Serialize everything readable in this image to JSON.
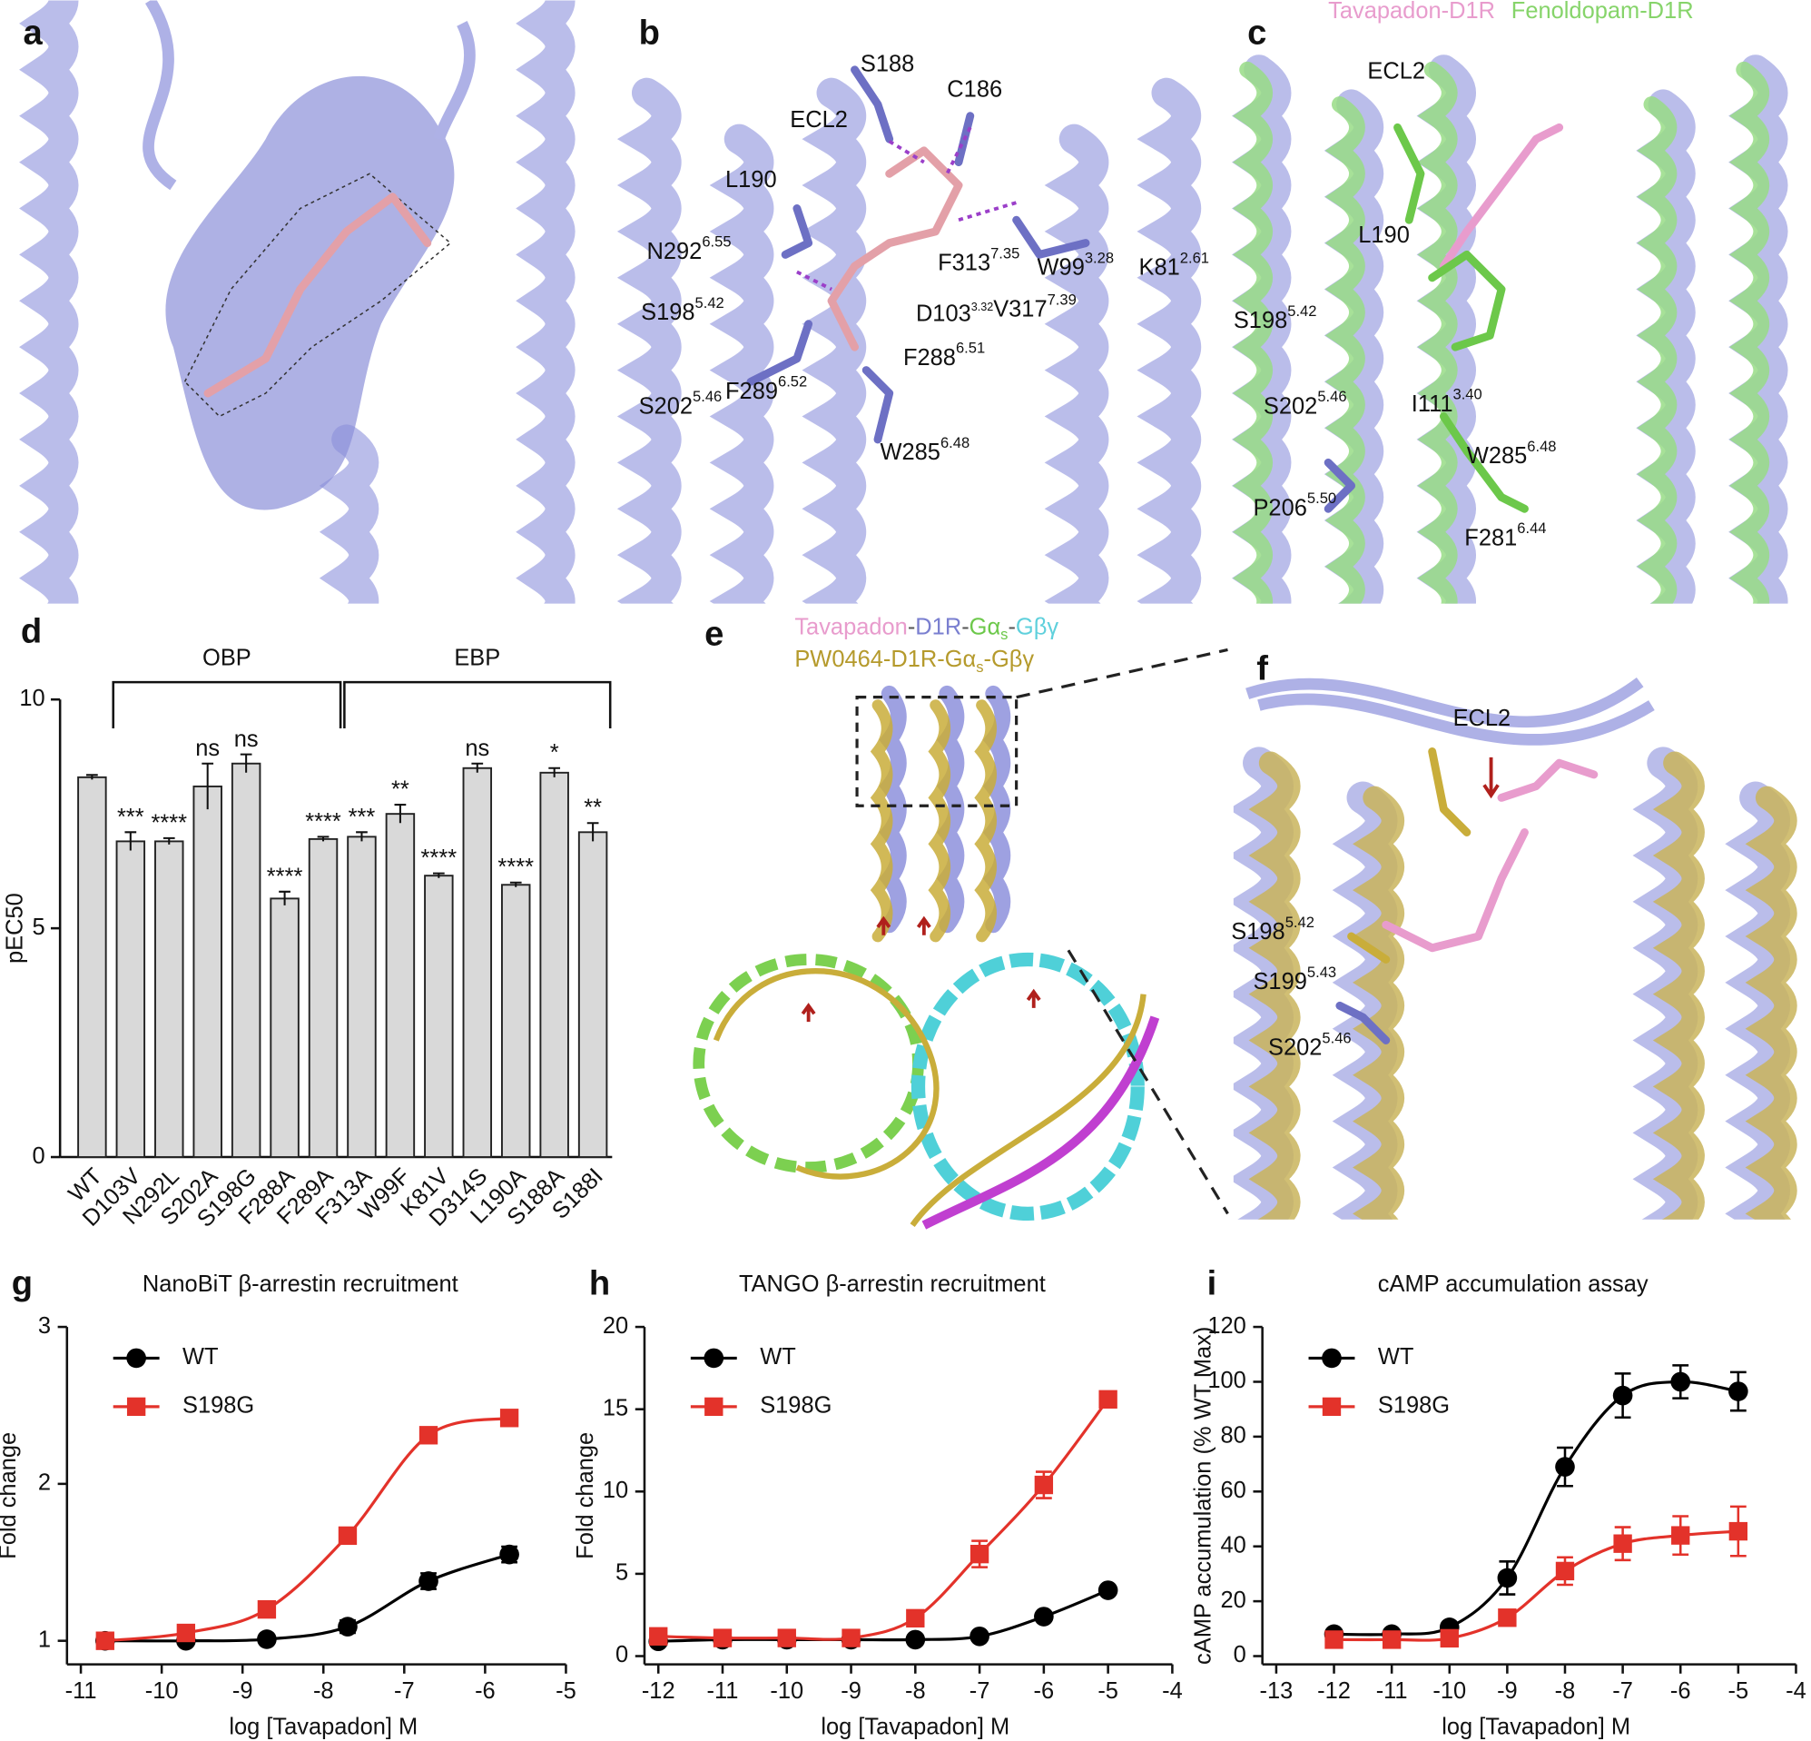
{
  "structure_panels": [
    {
      "panel_label": "a"
    },
    {
      "panel_label": "b",
      "labels": [
        {
          "text": "S188"
        },
        {
          "text": "C186"
        },
        {
          "text": "ECL2"
        },
        {
          "text": "L190"
        },
        {
          "text": "N292",
          "sup": "6.55"
        },
        {
          "text": "F313",
          "sup": "7.35"
        },
        {
          "text": "W99",
          "sup": "3.28"
        },
        {
          "text": "K81",
          "sup": "2.61"
        },
        {
          "text": "S198",
          "sup": "5.42"
        },
        {
          "text": "D103",
          "sup": "3.32"
        },
        {
          "text": "V317",
          "sup": "7.39"
        },
        {
          "text": "F288",
          "sup": "6.51"
        },
        {
          "text": "F289",
          "sup": "6.52"
        },
        {
          "text": "S202",
          "sup": "5.46"
        },
        {
          "text": "W285",
          "sup": "6.48"
        }
      ]
    },
    {
      "panel_label": "c",
      "legend": [
        {
          "text": "Tavapadon-D1R",
          "color": "#e89ccd"
        },
        {
          "text": "Fenoldopam-D1R",
          "color": "#86d46a"
        }
      ],
      "labels": [
        {
          "text": "ECL2"
        },
        {
          "text": "L190"
        },
        {
          "text": "S198",
          "sup": "5.42"
        },
        {
          "text": "S202",
          "sup": "5.46"
        },
        {
          "text": "I111",
          "sup": "3.40"
        },
        {
          "text": "W285",
          "sup": "6.48"
        },
        {
          "text": "P206",
          "sup": "5.50"
        },
        {
          "text": "F281",
          "sup": "6.44"
        }
      ]
    },
    {
      "panel_label": "e",
      "legend": [
        [
          {
            "text": "Tavapadon",
            "color": "#e89ccd"
          },
          {
            "text": "-",
            "color": "#555555"
          },
          {
            "text": "D1R",
            "color": "#7a7fd0"
          },
          {
            "text": "-",
            "color": "#555555"
          },
          {
            "text": "Gα",
            "color": "#6cc84a"
          },
          {
            "text": "s",
            "color": "#6cc84a",
            "subscript": true
          },
          {
            "text": "-",
            "color": "#555555"
          },
          {
            "text": "Gβγ",
            "color": "#5fd0dc"
          }
        ],
        [
          {
            "text": "PW0464-D1R-Gα",
            "color": "#b59a2c"
          },
          {
            "text": "s",
            "color": "#b59a2c",
            "subscript": true
          },
          {
            "text": "-Gβγ",
            "color": "#b59a2c"
          }
        ]
      ]
    },
    {
      "panel_label": "f",
      "labels": [
        {
          "text": "ECL2"
        },
        {
          "text": "S198",
          "sup": "5.42"
        },
        {
          "text": "S199",
          "sup": "5.43"
        },
        {
          "text": "S202",
          "sup": "5.46"
        }
      ]
    }
  ],
  "chart_data": [
    {
      "type": "bar",
      "panel_label": "d",
      "ylabel": "pEC50",
      "categories": [
        "WT",
        "D103V",
        "N292L",
        "S202A",
        "S198G",
        "F288A",
        "F289A",
        "F313A",
        "W99F",
        "K81V",
        "D314S",
        "L190A",
        "S188A",
        "S188I"
      ],
      "values": [
        8.3,
        6.9,
        6.9,
        8.1,
        8.6,
        5.65,
        6.95,
        7.0,
        7.5,
        6.15,
        8.5,
        5.95,
        8.4,
        7.1
      ],
      "errors": [
        0.05,
        0.2,
        0.07,
        0.5,
        0.2,
        0.15,
        0.05,
        0.1,
        0.2,
        0.05,
        0.1,
        0.05,
        0.1,
        0.2
      ],
      "annotations": [
        null,
        "***",
        "****",
        "ns",
        "ns",
        "****",
        "****",
        "***",
        "**",
        "****",
        "ns",
        "****",
        "*",
        "**"
      ],
      "groups": [
        {
          "label": "OBP",
          "members": [
            "D103V",
            "N292L",
            "S202A",
            "S198G",
            "F288A",
            "F289A"
          ]
        },
        {
          "label": "EBP",
          "members": [
            "F313A",
            "W99F",
            "K81V",
            "D314S",
            "L190A",
            "S188A",
            "S188I"
          ]
        }
      ],
      "color": "#d9d9d9",
      "ylim": [
        0,
        10
      ],
      "yticks": [
        0,
        5,
        10
      ]
    },
    {
      "type": "line",
      "panel_label": "g",
      "title": "NanoBiT β-arrestin recruitment",
      "xlabel": "log [Tavapadon] M",
      "ylabel": "Fold change",
      "x": [
        -10.7,
        -9.7,
        -8.7,
        -7.7,
        -6.7,
        -5.7
      ],
      "series": [
        {
          "name": "WT",
          "color": "#000000",
          "marker": "circle",
          "values": [
            1.0,
            1.0,
            1.01,
            1.09,
            1.38,
            1.55
          ],
          "errors": [
            0.02,
            0.02,
            0.02,
            0.04,
            0.05,
            0.05
          ]
        },
        {
          "name": "S198G",
          "color": "#e3322a",
          "marker": "square",
          "values": [
            1.0,
            1.05,
            1.2,
            1.67,
            2.31,
            2.42
          ],
          "errors": [
            0.02,
            0.02,
            0.03,
            0.03,
            0.03,
            0.03
          ]
        }
      ],
      "xlim": [
        -11,
        -5
      ],
      "xticks": [
        -11,
        -10,
        -9,
        -8,
        -7,
        -6,
        -5
      ],
      "ylim": [
        0.85,
        3
      ],
      "yticks": [
        1,
        2,
        3
      ]
    },
    {
      "type": "line",
      "panel_label": "h",
      "title": "TANGO β-arrestin recruitment",
      "xlabel": "log [Tavapadon] M",
      "ylabel": "Fold change",
      "x": [
        -12,
        -11,
        -10,
        -9,
        -8,
        -7,
        -6,
        -5
      ],
      "series": [
        {
          "name": "WT",
          "color": "#000000",
          "marker": "circle",
          "values": [
            0.9,
            1.0,
            1.0,
            1.0,
            1.0,
            1.2,
            2.4,
            4.0
          ],
          "errors": [
            0.1,
            0.1,
            0.1,
            0.1,
            0.1,
            0.1,
            0.2,
            0.2
          ]
        },
        {
          "name": "S198G",
          "color": "#e3322a",
          "marker": "square",
          "values": [
            1.2,
            1.1,
            1.1,
            1.1,
            2.3,
            6.2,
            10.4,
            15.6
          ],
          "errors": [
            0.1,
            0.1,
            0.1,
            0.1,
            0.3,
            0.8,
            0.8,
            0.3
          ]
        }
      ],
      "xlim": [
        -12,
        -4
      ],
      "xticks": [
        -12,
        -11,
        -10,
        -9,
        -8,
        -7,
        -6,
        -5,
        -4
      ],
      "ylim": [
        -0.5,
        20
      ],
      "yticks": [
        0,
        5,
        10,
        15,
        20
      ]
    },
    {
      "type": "line",
      "panel_label": "i",
      "title": "cAMP accumulation assay",
      "xlabel": "log [Tavapadon] M",
      "ylabel": "cAMP accumulation (% WT Max)",
      "x": [
        -12,
        -11,
        -10,
        -9,
        -8,
        -7,
        -6,
        -5
      ],
      "series": [
        {
          "name": "WT",
          "color": "#000000",
          "marker": "circle",
          "values": [
            8,
            8,
            10.5,
            28.5,
            69,
            95,
            100,
            96.5
          ],
          "errors": [
            1,
            1,
            1.5,
            6,
            7,
            8,
            6,
            7
          ]
        },
        {
          "name": "S198G",
          "color": "#e3322a",
          "marker": "square",
          "values": [
            6,
            6,
            6.5,
            14,
            31,
            41,
            44,
            45.5
          ],
          "errors": [
            1,
            1,
            1,
            2,
            5,
            6,
            7,
            9
          ]
        }
      ],
      "xlim": [
        -13,
        -4
      ],
      "xticks": [
        -13,
        -12,
        -11,
        -10,
        -9,
        -8,
        -7,
        -6,
        -5,
        -4
      ],
      "ylim": [
        -3,
        120
      ],
      "yticks": [
        0,
        20,
        40,
        60,
        80,
        100,
        120
      ]
    }
  ]
}
